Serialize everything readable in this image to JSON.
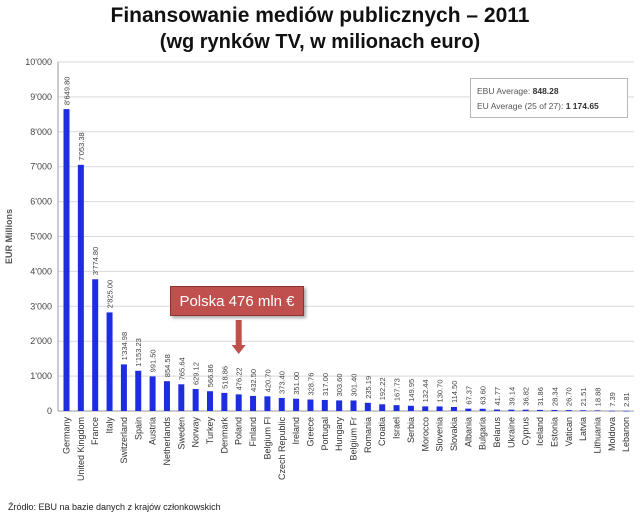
{
  "title": "Finansowanie mediów publicznych – 2011",
  "subtitle": "(wg rynków TV, w milionach euro)",
  "source": "Źródło: EBU na bazie danych z krajów członkowskich",
  "callout": "Polska 476 mln €",
  "averages": {
    "ebu_label": "EBU Average:",
    "ebu_value": "848.28",
    "eu_label": "EU Average (25 of 27):",
    "eu_value": "1 174.65"
  },
  "colors": {
    "bar": "#1f2de0",
    "callout": "#c0504d",
    "grid": "#d9d9d9"
  },
  "chart_data": {
    "type": "bar",
    "ylabel": "EUR Millions",
    "ylim": [
      0,
      10000
    ],
    "yticks": [
      "0",
      "1'000",
      "2'000",
      "3'000",
      "4'000",
      "5'000",
      "6'000",
      "7'000",
      "8'000",
      "9'000",
      "10'000"
    ],
    "grid": true,
    "categories": [
      "Germany",
      "United Kingdom",
      "France",
      "Italy",
      "Switzerland",
      "Spain",
      "Austria",
      "Netherlands",
      "Sweden",
      "Norway",
      "Turkey",
      "Denmark",
      "Poland",
      "Finland",
      "Belgium Fl",
      "Czech Republic",
      "Ireland",
      "Greece",
      "Portugal",
      "Hungary",
      "Belgium Fr",
      "Romania",
      "Croatia",
      "Israel",
      "Serbia",
      "Morocco",
      "Slovenia",
      "Slovakia",
      "Albania",
      "Bulgaria",
      "Belarus",
      "Ukraine",
      "Cyprus",
      "Iceland",
      "Estonia",
      "Vatican",
      "Latvia",
      "Lithuania",
      "Moldova",
      "Lebanon"
    ],
    "values": [
      8649.8,
      7053.38,
      3774.8,
      2825.0,
      1334.98,
      1153.23,
      991.5,
      854.58,
      765.64,
      629.12,
      566.86,
      518.86,
      476.22,
      432.5,
      420.7,
      373.4,
      351.0,
      328.76,
      317.0,
      303.6,
      301.4,
      235.19,
      192.22,
      167.73,
      149.95,
      132.44,
      130.7,
      114.5,
      67.37,
      63.6,
      41.77,
      39.14,
      36.82,
      31.86,
      28.34,
      26.7,
      21.51,
      18.88,
      7.39,
      2.81
    ],
    "value_labels": [
      "8'649.80",
      "7'053.38",
      "3'774.80",
      "2'825.00",
      "1'334.98",
      "1'153.23",
      "991.50",
      "854.58",
      "765.64",
      "629.12",
      "566.86",
      "518.86",
      "476.22",
      "432.50",
      "420.70",
      "373.40",
      "351.00",
      "328.76",
      "317.00",
      "303.60",
      "301.40",
      "235.19",
      "192.22",
      "167.73",
      "149.95",
      "132.44",
      "130.70",
      "114.50",
      "67.37",
      "63.60",
      "41.77",
      "39.14",
      "36.82",
      "31.86",
      "28.34",
      "26.70",
      "21.51",
      "18.88",
      "7.39",
      "2.81"
    ]
  }
}
